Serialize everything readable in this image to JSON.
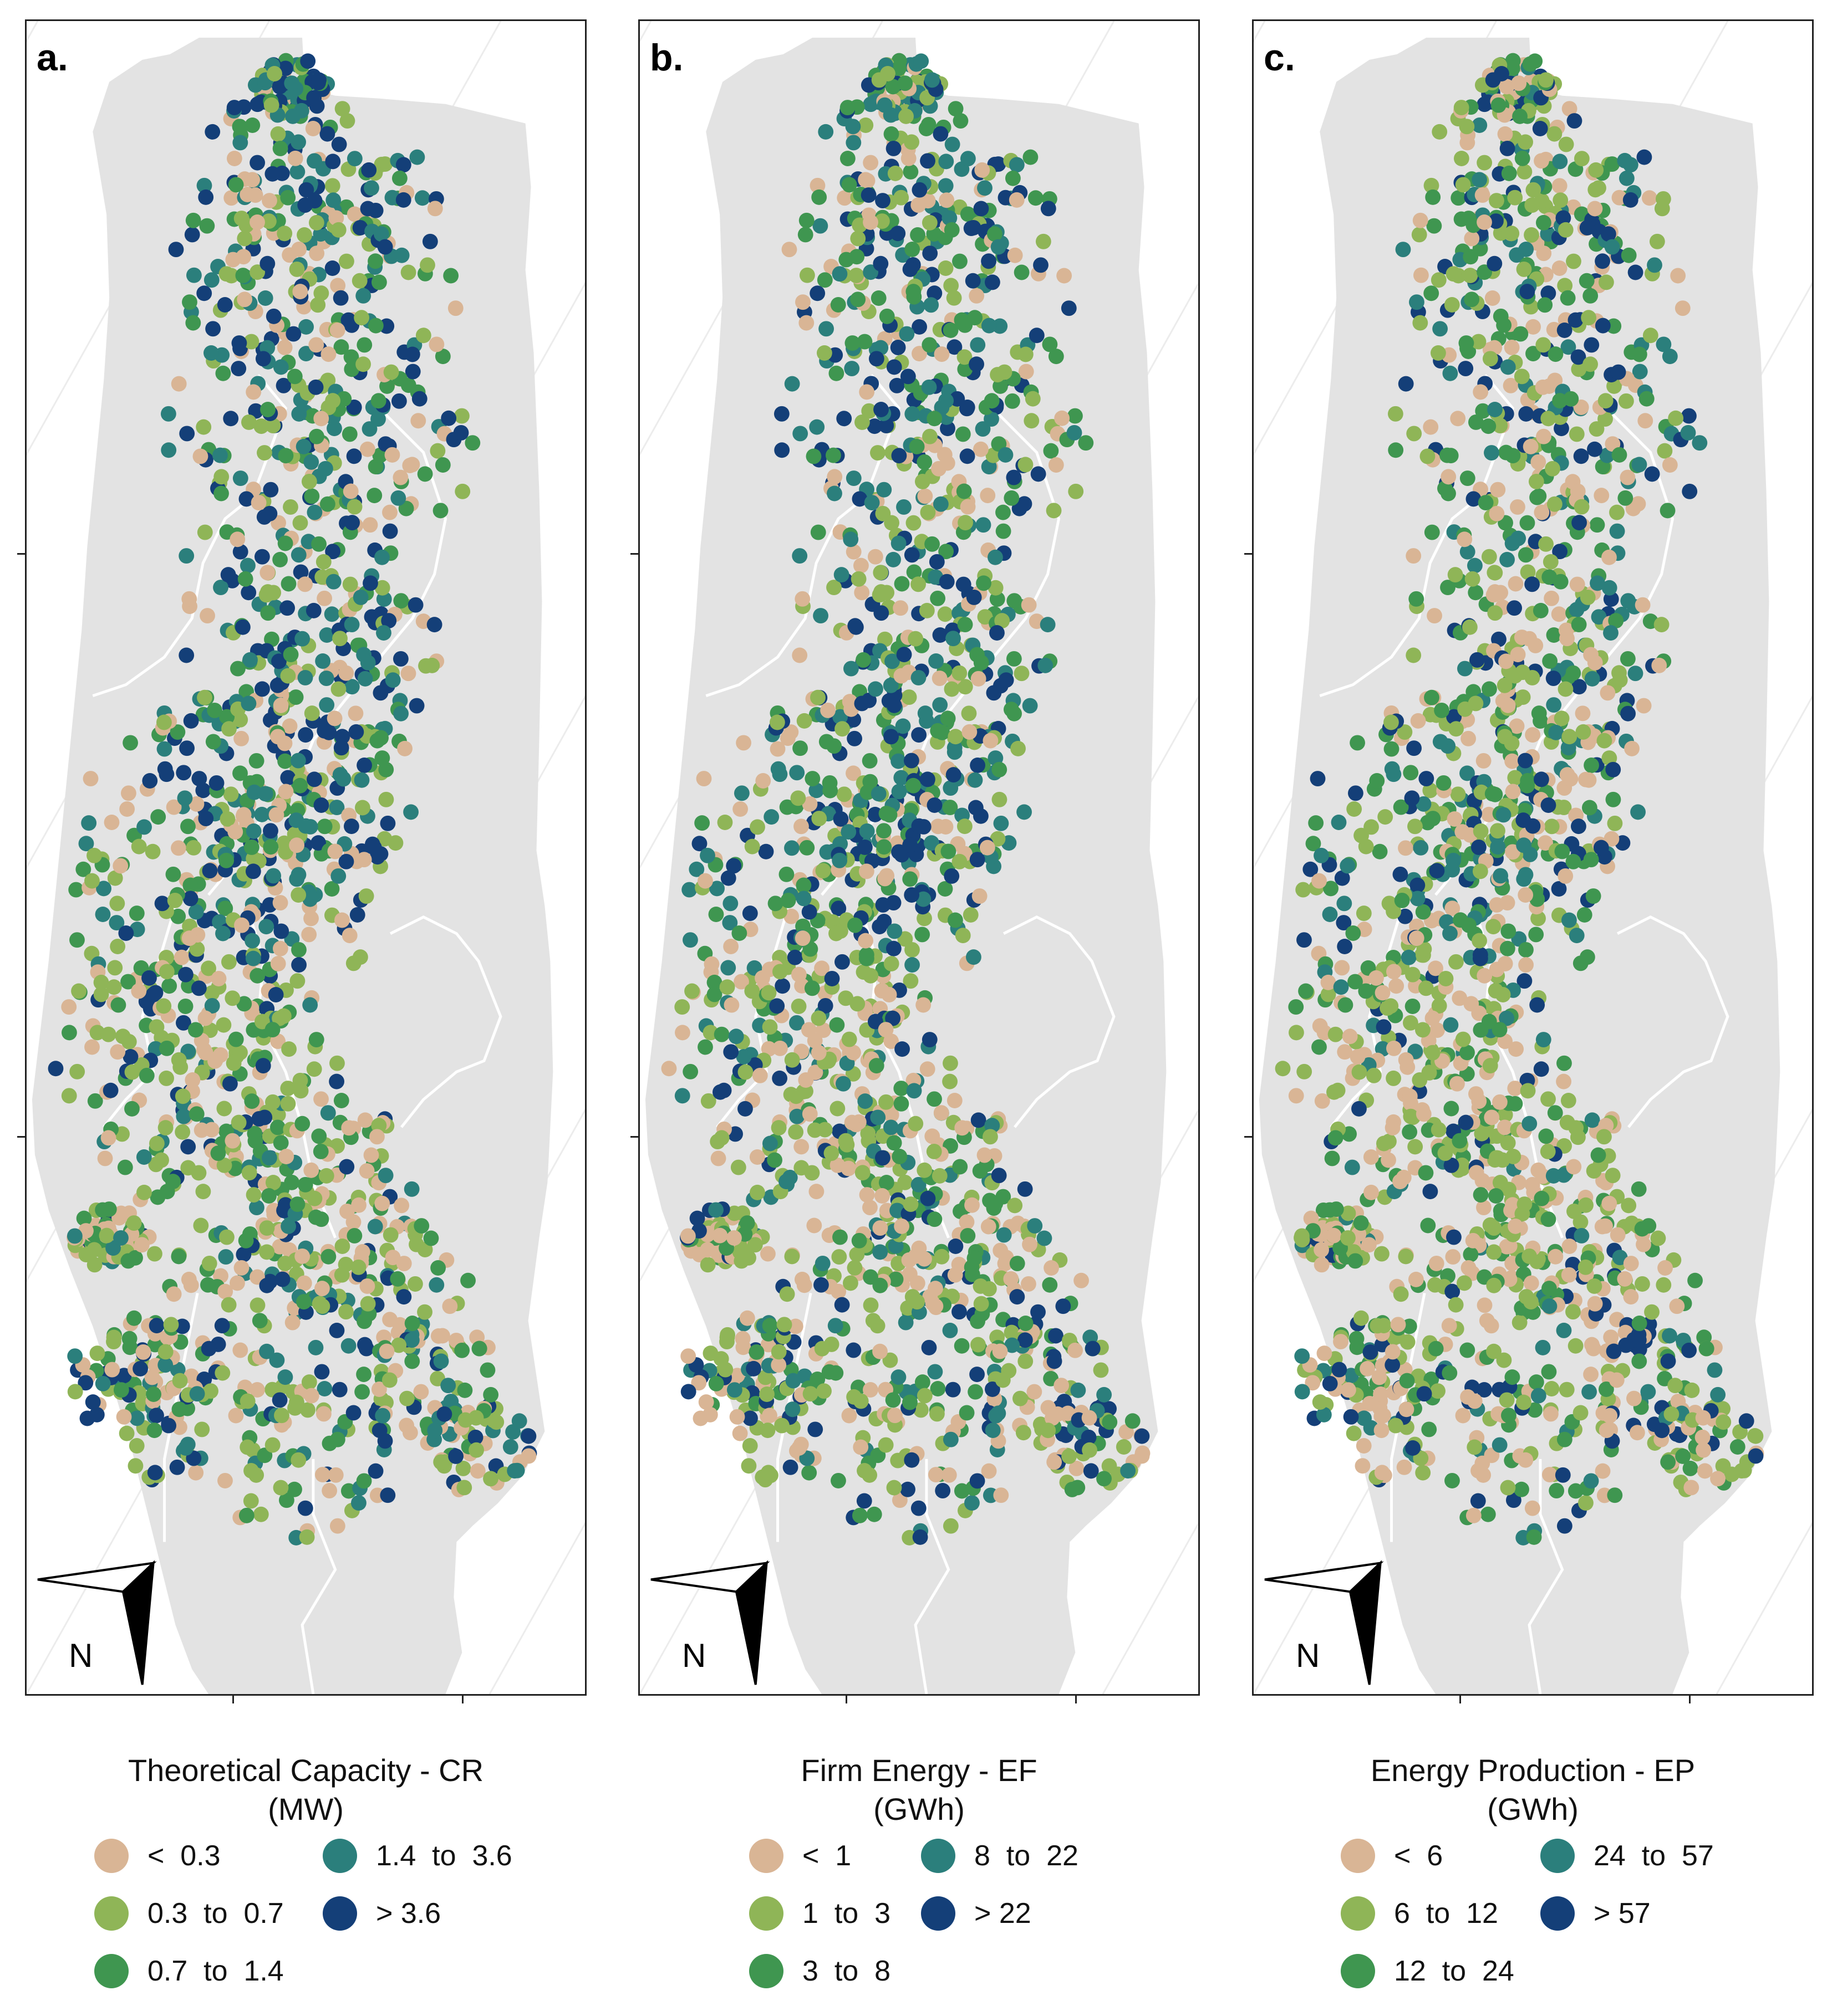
{
  "figure": {
    "colors": {
      "background": "#ffffff",
      "land": "#e3e3e3",
      "graticule": "#ececec",
      "boundary": "#ffffff",
      "frame": "#222222",
      "class_colors": [
        "#d9b595",
        "#8fb557",
        "#3f9650",
        "#2b7f7c",
        "#143f78"
      ]
    },
    "panels": [
      {
        "label": "a.",
        "north_label": "N",
        "north_icon": "north-arrow-icon",
        "legend": {
          "title": "Theoretical Capacity - CR",
          "unit": "(MW)",
          "classes": [
            {
              "label": "<  0.3",
              "color": "#d9b595"
            },
            {
              "label": "0.3  to  0.7",
              "color": "#8fb557"
            },
            {
              "label": "0.7  to  1.4",
              "color": "#3f9650"
            },
            {
              "label": "1.4  to  3.6",
              "color": "#2b7f7c"
            },
            {
              "label": "> 3.6",
              "color": "#143f78"
            }
          ]
        }
      },
      {
        "label": "b.",
        "north_label": "N",
        "north_icon": "north-arrow-icon",
        "legend": {
          "title": "Firm Energy - EF",
          "unit": "(GWh)",
          "classes": [
            {
              "label": "<  1",
              "color": "#d9b595"
            },
            {
              "label": "1  to  3",
              "color": "#8fb557"
            },
            {
              "label": "3  to  8",
              "color": "#3f9650"
            },
            {
              "label": "8  to  22",
              "color": "#2b7f7c"
            },
            {
              "label": "> 22",
              "color": "#143f78"
            }
          ]
        }
      },
      {
        "label": "c.",
        "north_label": "N",
        "north_icon": "north-arrow-icon",
        "legend": {
          "title": "Energy Production - EP",
          "unit": "(GWh)",
          "classes": [
            {
              "label": "<  6",
              "color": "#d9b595"
            },
            {
              "label": "6  to  12",
              "color": "#8fb557"
            },
            {
              "label": "12  to  24",
              "color": "#3f9650"
            },
            {
              "label": "24  to  57",
              "color": "#2b7f7c"
            },
            {
              "label": "> 57",
              "color": "#143f78"
            }
          ]
        }
      }
    ]
  }
}
